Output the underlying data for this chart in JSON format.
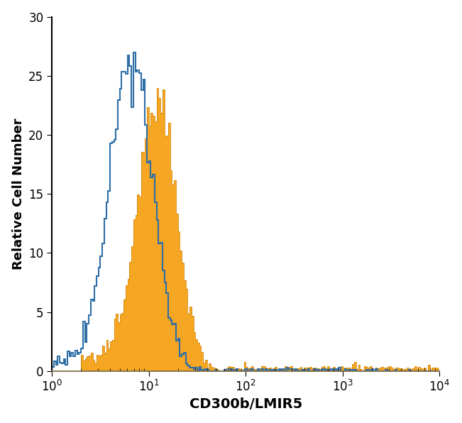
{
  "xlabel": "CD300b/LMIR5",
  "ylabel": "Relative Cell Number",
  "xlim": [
    1,
    10000
  ],
  "ylim": [
    0,
    30
  ],
  "yticks": [
    0,
    5,
    10,
    15,
    20,
    25,
    30
  ],
  "blue_color": "#2E6EA6",
  "orange_color": "#F5A623",
  "background_color": "#FFFFFF",
  "xlabel_fontsize": 14,
  "ylabel_fontsize": 13,
  "tick_fontsize": 12,
  "blue_linewidth": 1.5,
  "blue_peak_y": 27,
  "orange_peak_y": 24,
  "blue_mean_log": 0.82,
  "blue_sigma_log": 0.22,
  "orange_mean_log": 1.08,
  "orange_sigma_log": 0.2,
  "n_bins": 200,
  "log_xmin": 0,
  "log_xmax": 4
}
